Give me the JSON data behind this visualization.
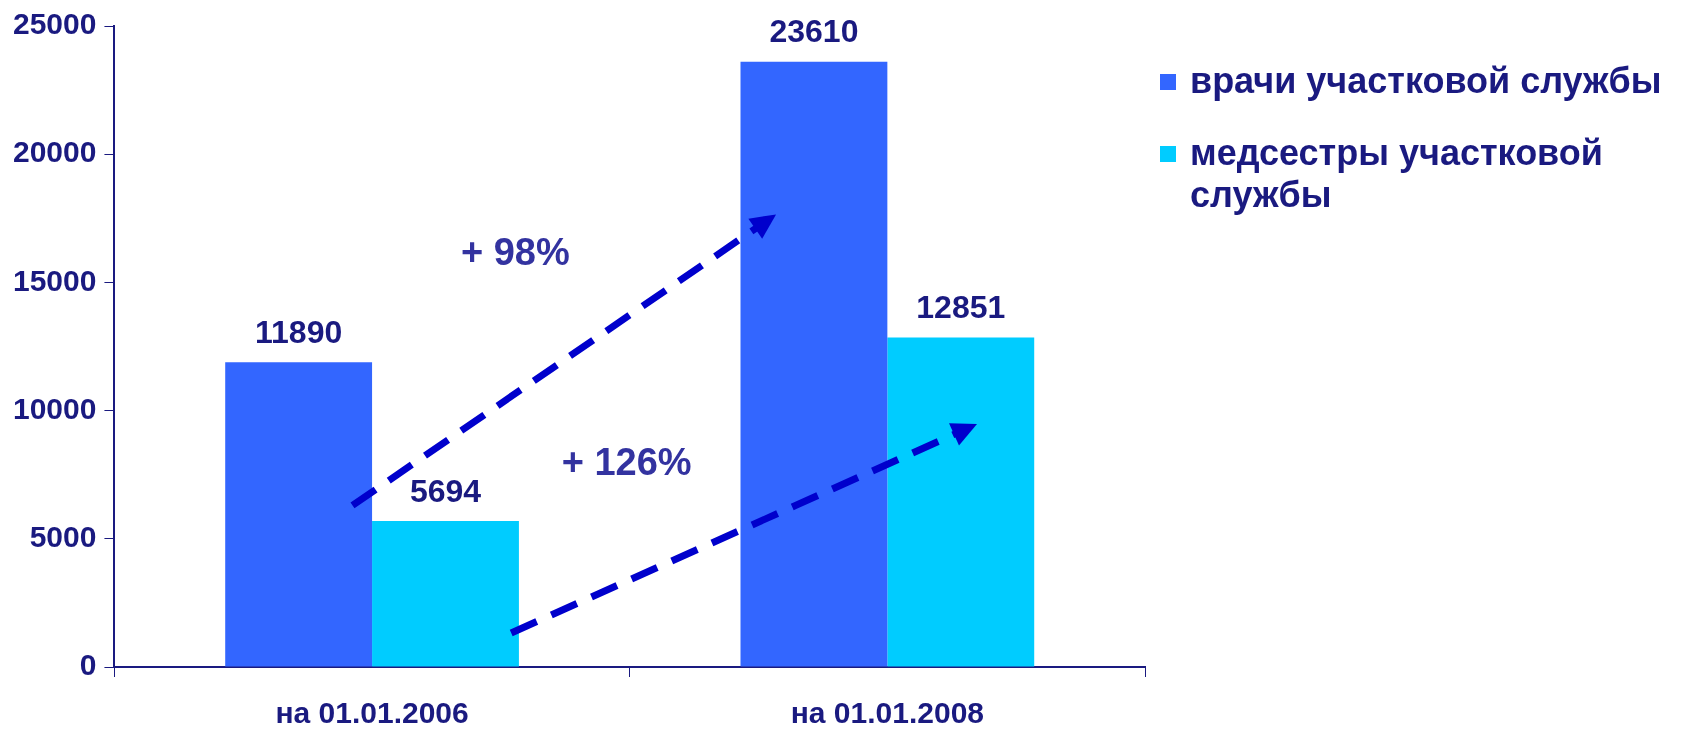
{
  "chart_data": {
    "type": "bar",
    "categories": [
      "на 01.01.2006",
      "на 01.01.2008"
    ],
    "series": [
      {
        "name": "врачи участковой службы",
        "color": "#3366ff",
        "values": [
          11890,
          23610
        ]
      },
      {
        "name": "медсестры участковой службы",
        "color": "#00ccff",
        "values": [
          5694,
          12851
        ]
      }
    ],
    "ylim": [
      0,
      25000
    ],
    "yticks": [
      0,
      5000,
      10000,
      15000,
      20000,
      25000
    ],
    "grid": false,
    "legend": "right",
    "data_labels": true,
    "annotations": [
      "+ 98%",
      "+ 126%"
    ]
  }
}
